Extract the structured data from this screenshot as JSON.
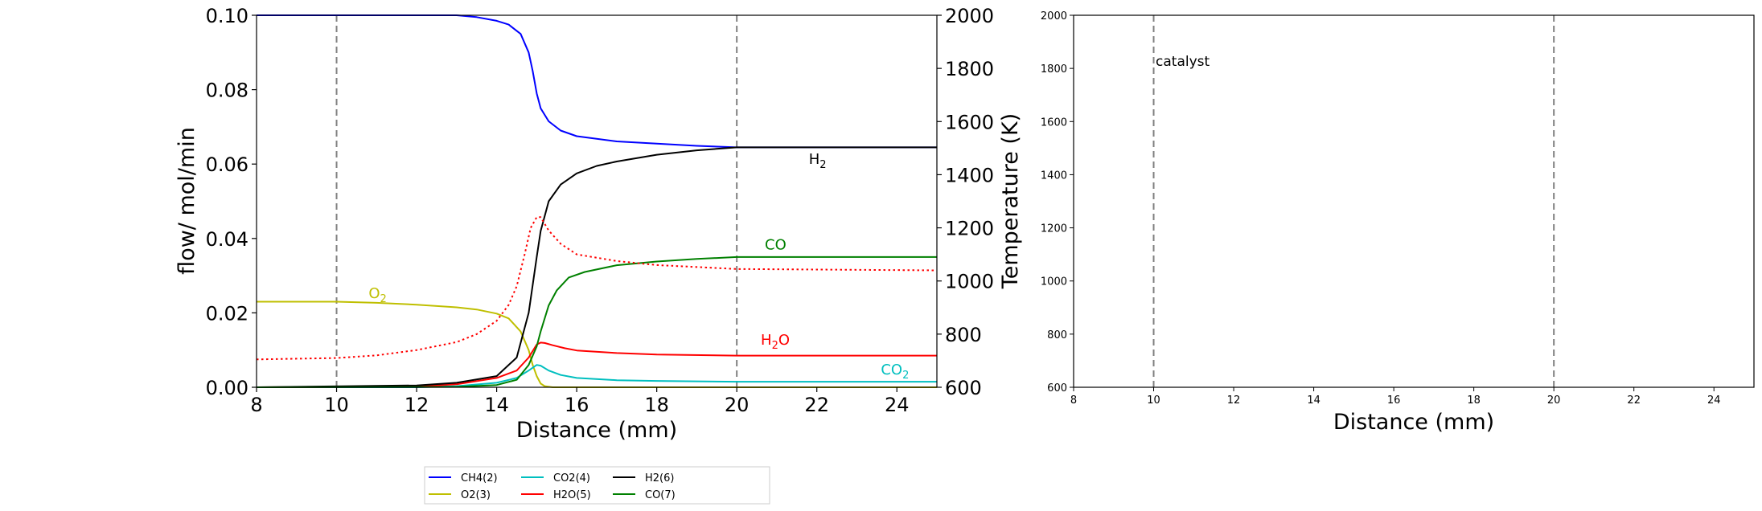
{
  "chart_data": [
    {
      "type": "line",
      "xlabel": "Distance (mm)",
      "ylabel": "flow/ mol/min",
      "y2label": "Temperature (K)",
      "xlim": [
        8,
        25
      ],
      "ylim": [
        0,
        0.1
      ],
      "y2lim": [
        600,
        2000
      ],
      "xticks": [
        "8",
        "10",
        "12",
        "14",
        "16",
        "18",
        "20",
        "22",
        "24"
      ],
      "xtick_values": [
        8,
        10,
        12,
        14,
        16,
        18,
        20,
        22,
        24
      ],
      "yticks": [
        "0.00",
        "0.02",
        "0.04",
        "0.06",
        "0.08",
        "0.10"
      ],
      "ytick_values": [
        0,
        0.02,
        0.04,
        0.06,
        0.08,
        0.1
      ],
      "y2ticks": [
        "600",
        "800",
        "1000",
        "1200",
        "1400",
        "1600",
        "1800",
        "2000"
      ],
      "y2tick_values": [
        600,
        800,
        1000,
        1200,
        1400,
        1600,
        1800,
        2000
      ],
      "vlines": [
        10,
        20
      ],
      "series": [
        {
          "name": "CH4(2)",
          "color": "#0000ff",
          "style": "solid",
          "x": [
            8,
            10,
            12,
            13,
            13.5,
            14,
            14.3,
            14.6,
            14.8,
            14.9,
            15.0,
            15.1,
            15.3,
            15.6,
            16,
            17,
            18,
            19,
            20,
            25
          ],
          "y": [
            0.1,
            0.1,
            0.1,
            0.1,
            0.0995,
            0.0985,
            0.0975,
            0.095,
            0.09,
            0.085,
            0.079,
            0.075,
            0.0715,
            0.069,
            0.0675,
            0.0661,
            0.0655,
            0.0649,
            0.0645,
            0.0645
          ]
        },
        {
          "name": "O2(3)",
          "color": "#bfbf00",
          "style": "solid",
          "x": [
            8,
            10,
            11,
            12,
            13,
            13.5,
            14,
            14.3,
            14.6,
            14.8,
            14.9,
            15.0,
            15.1,
            15.2,
            15.4,
            25
          ],
          "y": [
            0.023,
            0.023,
            0.0227,
            0.0222,
            0.0215,
            0.0209,
            0.0198,
            0.0185,
            0.015,
            0.01,
            0.006,
            0.003,
            0.001,
            0.0003,
            0,
            0
          ]
        },
        {
          "name": "CO2(4)",
          "color": "#00bfbf",
          "style": "solid",
          "x": [
            8,
            12,
            13,
            14,
            14.5,
            14.8,
            15.0,
            15.1,
            15.3,
            15.6,
            16,
            17,
            18,
            20,
            25
          ],
          "y": [
            0,
            0,
            0.0003,
            0.0012,
            0.0025,
            0.0045,
            0.006,
            0.0058,
            0.0045,
            0.0033,
            0.0025,
            0.0019,
            0.0017,
            0.0015,
            0.0015
          ]
        },
        {
          "name": "H2O(5)",
          "color": "#ff0000",
          "style": "solid",
          "x": [
            8,
            12,
            13,
            14,
            14.5,
            14.8,
            15.0,
            15.1,
            15.2,
            15.4,
            15.7,
            16,
            17,
            18,
            20,
            25
          ],
          "y": [
            0,
            0.0002,
            0.0008,
            0.0025,
            0.0045,
            0.008,
            0.0115,
            0.012,
            0.0119,
            0.0113,
            0.0105,
            0.0099,
            0.0092,
            0.0088,
            0.0085,
            0.0085
          ]
        },
        {
          "name": "H2(6)",
          "color": "#000000",
          "style": "solid",
          "x": [
            8,
            12,
            13,
            14,
            14.5,
            14.8,
            15.0,
            15.1,
            15.3,
            15.6,
            16,
            16.5,
            17,
            18,
            19,
            20,
            25
          ],
          "y": [
            0,
            0.0005,
            0.0012,
            0.003,
            0.008,
            0.02,
            0.035,
            0.042,
            0.05,
            0.0545,
            0.0575,
            0.0595,
            0.0607,
            0.0625,
            0.0637,
            0.0645,
            0.0645
          ]
        },
        {
          "name": "CO(7)",
          "color": "#008000",
          "style": "solid",
          "x": [
            8,
            13,
            14,
            14.5,
            14.8,
            15.0,
            15.1,
            15.3,
            15.5,
            15.8,
            16.2,
            17,
            18,
            19,
            20,
            25
          ],
          "y": [
            0,
            0.0001,
            0.0006,
            0.002,
            0.006,
            0.011,
            0.015,
            0.022,
            0.026,
            0.0295,
            0.031,
            0.0328,
            0.0338,
            0.0345,
            0.035,
            0.035
          ]
        },
        {
          "name": "Temperature",
          "color": "#ff0000",
          "style": "dotted",
          "axis": "y2",
          "x": [
            8,
            10,
            11,
            12,
            13,
            13.5,
            14,
            14.3,
            14.5,
            14.7,
            14.85,
            15.0,
            15.1,
            15.3,
            15.6,
            16,
            17,
            18,
            20,
            25
          ],
          "y": [
            705,
            710,
            720,
            740,
            770,
            800,
            850,
            910,
            980,
            1100,
            1200,
            1240,
            1240,
            1190,
            1140,
            1100,
            1075,
            1060,
            1045,
            1040
          ]
        }
      ],
      "annotations": [
        {
          "text": "O",
          "sub": "2",
          "x": 10.8,
          "y": 0.024,
          "color": "#bfbf00"
        },
        {
          "text": "H",
          "sub": "2",
          "x": 21.8,
          "y": 0.06,
          "color": "#000000"
        },
        {
          "text": "CO",
          "sub": "",
          "x": 20.7,
          "y": 0.037,
          "color": "#008000"
        },
        {
          "text": "H",
          "sub": "2",
          "after": "O",
          "x": 20.6,
          "y": 0.0115,
          "color": "#ff0000"
        },
        {
          "text": "CO",
          "sub": "2",
          "x": 23.6,
          "y": 0.0035,
          "color": "#00bfbf"
        }
      ]
    },
    {
      "type": "line",
      "xlabel": "Distance (mm)",
      "ylabel": "",
      "xlim": [
        8,
        25
      ],
      "ylim": [
        600,
        2000
      ],
      "xticks": [
        "8",
        "10",
        "12",
        "14",
        "16",
        "18",
        "20",
        "22",
        "24"
      ],
      "xtick_values": [
        8,
        10,
        12,
        14,
        16,
        18,
        20,
        22,
        24
      ],
      "yticks": [
        "600",
        "800",
        "1000",
        "1200",
        "1400",
        "1600",
        "1800",
        "2000"
      ],
      "ytick_values": [
        600,
        800,
        1000,
        1200,
        1400,
        1600,
        1800,
        2000
      ],
      "vlines": [
        10,
        20
      ],
      "series": [],
      "annotations": [
        {
          "text": "catalyst",
          "x": 10.05,
          "y": 1810,
          "color": "#000000"
        }
      ]
    }
  ],
  "legend": {
    "placement": "bottom-center",
    "items": [
      {
        "label": "CH4(2)",
        "color": "#0000ff"
      },
      {
        "label": "O2(3)",
        "color": "#bfbf00"
      },
      {
        "label": "CO2(4)",
        "color": "#00bfbf"
      },
      {
        "label": "H2O(5)",
        "color": "#ff0000"
      },
      {
        "label": "H2(6)",
        "color": "#000000"
      },
      {
        "label": "CO(7)",
        "color": "#008000"
      }
    ]
  }
}
